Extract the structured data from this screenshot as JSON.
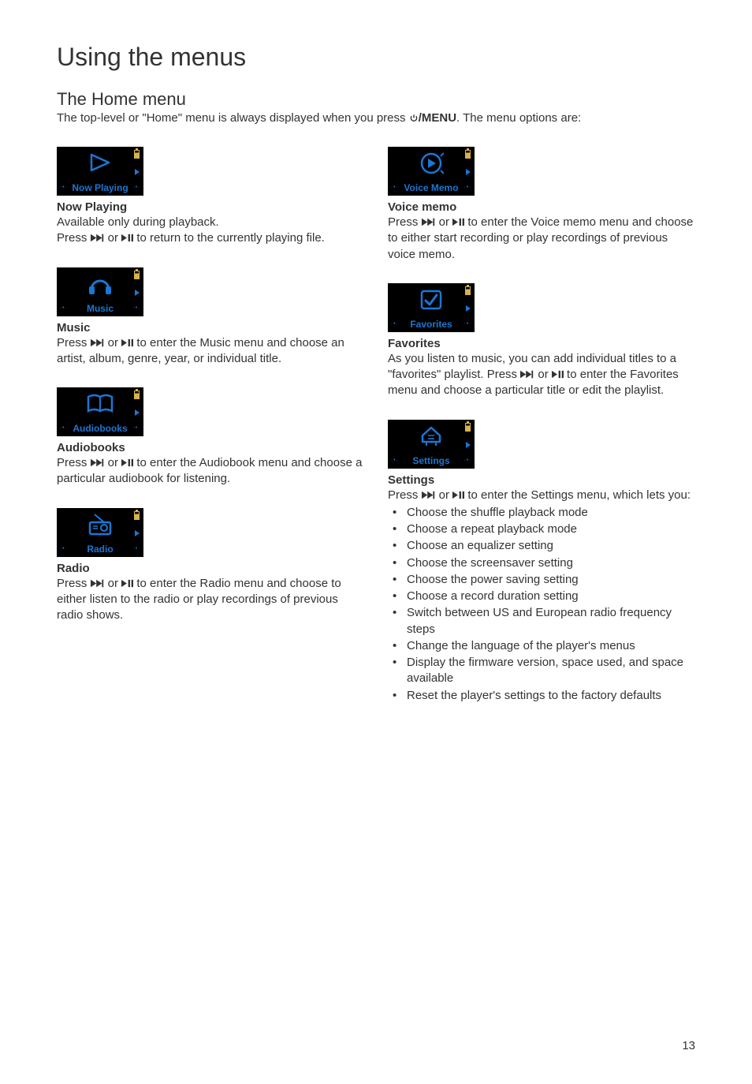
{
  "page": {
    "title": "Using the menus",
    "subtitle": "The Home menu",
    "intro_before": "The top-level or \"Home\" menu is always displayed when you press ",
    "intro_bold": "/MENU",
    "intro_after": ". The menu options are:",
    "page_number": "13"
  },
  "colors": {
    "accent": "#1a77d4",
    "thumb_bg": "#000000",
    "battery": "#d9b24a"
  },
  "icons": {
    "power": "⏻",
    "fwd": "⏭",
    "playpause": "⏯"
  },
  "left": [
    {
      "thumb_label": "Now Playing",
      "thumb_label_color": "#1a77d4",
      "icon": "nowplaying",
      "title": "Now Playing",
      "body_lines": [
        "Available only during playback.",
        "Press {{fwd}} or {{pp}} to return to the currently playing file."
      ]
    },
    {
      "thumb_label": "Music",
      "thumb_label_color": "#1a77d4",
      "icon": "music",
      "title": "Music",
      "body_lines": [
        "Press {{fwd}} or {{pp}} to enter the Music menu and choose an artist, album, genre, year, or individual title."
      ]
    },
    {
      "thumb_label": "Audiobooks",
      "thumb_label_color": "#1a77d4",
      "icon": "audiobooks",
      "title": "Audiobooks",
      "body_lines": [
        "Press {{fwd}} or {{pp}} to enter the Audiobook menu and choose a particular audiobook for listening."
      ]
    },
    {
      "thumb_label": "Radio",
      "thumb_label_color": "#1a77d4",
      "icon": "radio",
      "title": "Radio",
      "body_lines": [
        "Press {{fwd}} or {{pp}} to enter the Radio menu and choose to either listen to the radio or play recordings of previous radio shows."
      ]
    }
  ],
  "right": [
    {
      "thumb_label": "Voice Memo",
      "thumb_label_color": "#1a77d4",
      "icon": "voicememo",
      "title": "Voice memo",
      "body_lines": [
        "Press {{fwd}} or {{pp}} to enter the Voice memo menu and choose to either start recording or play recordings of previous voice memo."
      ]
    },
    {
      "thumb_label": "Favorites",
      "thumb_label_color": "#1a77d4",
      "icon": "favorites",
      "title": "Favorites",
      "body_lines": [
        "As you listen to music, you can add individual titles to a \"favorites\" playlist. Press {{fwd}} or {{pp}} to enter the Favorites menu and choose a particular title or edit the playlist."
      ]
    },
    {
      "thumb_label": "Settings",
      "thumb_label_color": "#1a77d4",
      "icon": "settings",
      "title": "Settings",
      "body_lines": [
        "Press {{fwd}} or {{pp}} to enter the Settings menu, which lets you:"
      ],
      "bullets": [
        "Choose the shuffle playback mode",
        "Choose a repeat playback mode",
        "Choose an equalizer setting",
        "Choose the screensaver setting",
        "Choose the power saving setting",
        "Choose a record duration setting",
        "Switch between US and European radio frequency steps",
        "Change the language of the player's menus",
        "Display the firmware version, space used, and space available",
        "Reset the player's settings to the factory defaults"
      ]
    }
  ]
}
